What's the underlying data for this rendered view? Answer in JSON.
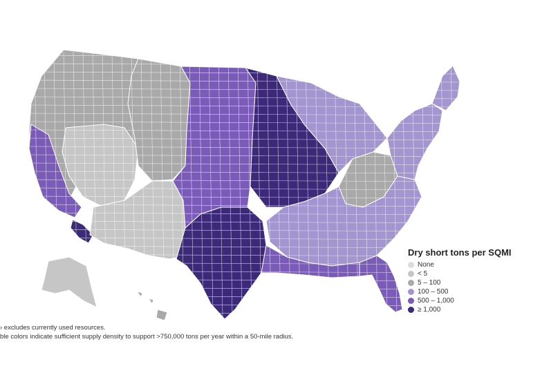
{
  "legend": {
    "title": "Dry short tons per SQMI",
    "items": [
      {
        "label": "None",
        "color": "#dcdcdc"
      },
      {
        "label": "< 5",
        "color": "#c6c6c6"
      },
      {
        "label": "5 – 100",
        "color": "#a9a9a9"
      },
      {
        "label": "100 – 500",
        "color": "#a395cf"
      },
      {
        "label": "500 – 1,000",
        "color": "#7a5cb8"
      },
      {
        "label": "≥ 1,000",
        "color": "#3c2a78"
      }
    ]
  },
  "notes": [
    "› excludes currently used resources.",
    "ble colors indicate sufficient supply density to support >750,000 tons per year within a 50-mile radius."
  ],
  "map": {
    "regions": [
      {
        "name": "west",
        "class_index": 2
      },
      {
        "name": "great-basin",
        "class_index": 1
      },
      {
        "name": "california-coast",
        "class_index": 4
      },
      {
        "name": "southern-california",
        "class_index": 5
      },
      {
        "name": "rockies",
        "class_index": 2
      },
      {
        "name": "southwest",
        "class_index": 1
      },
      {
        "name": "great-plains",
        "class_index": 4
      },
      {
        "name": "corn-belt",
        "class_index": 5
      },
      {
        "name": "great-lakes",
        "class_index": 3
      },
      {
        "name": "appalachia",
        "class_index": 2
      },
      {
        "name": "southeast",
        "class_index": 3
      },
      {
        "name": "texas",
        "class_index": 5
      },
      {
        "name": "gulf-coast",
        "class_index": 4
      },
      {
        "name": "florida",
        "class_index": 4
      },
      {
        "name": "northeast",
        "class_index": 3
      },
      {
        "name": "maine",
        "class_index": 3
      },
      {
        "name": "alaska",
        "class_index": 1
      },
      {
        "name": "hawaii",
        "class_index": 2
      }
    ]
  }
}
